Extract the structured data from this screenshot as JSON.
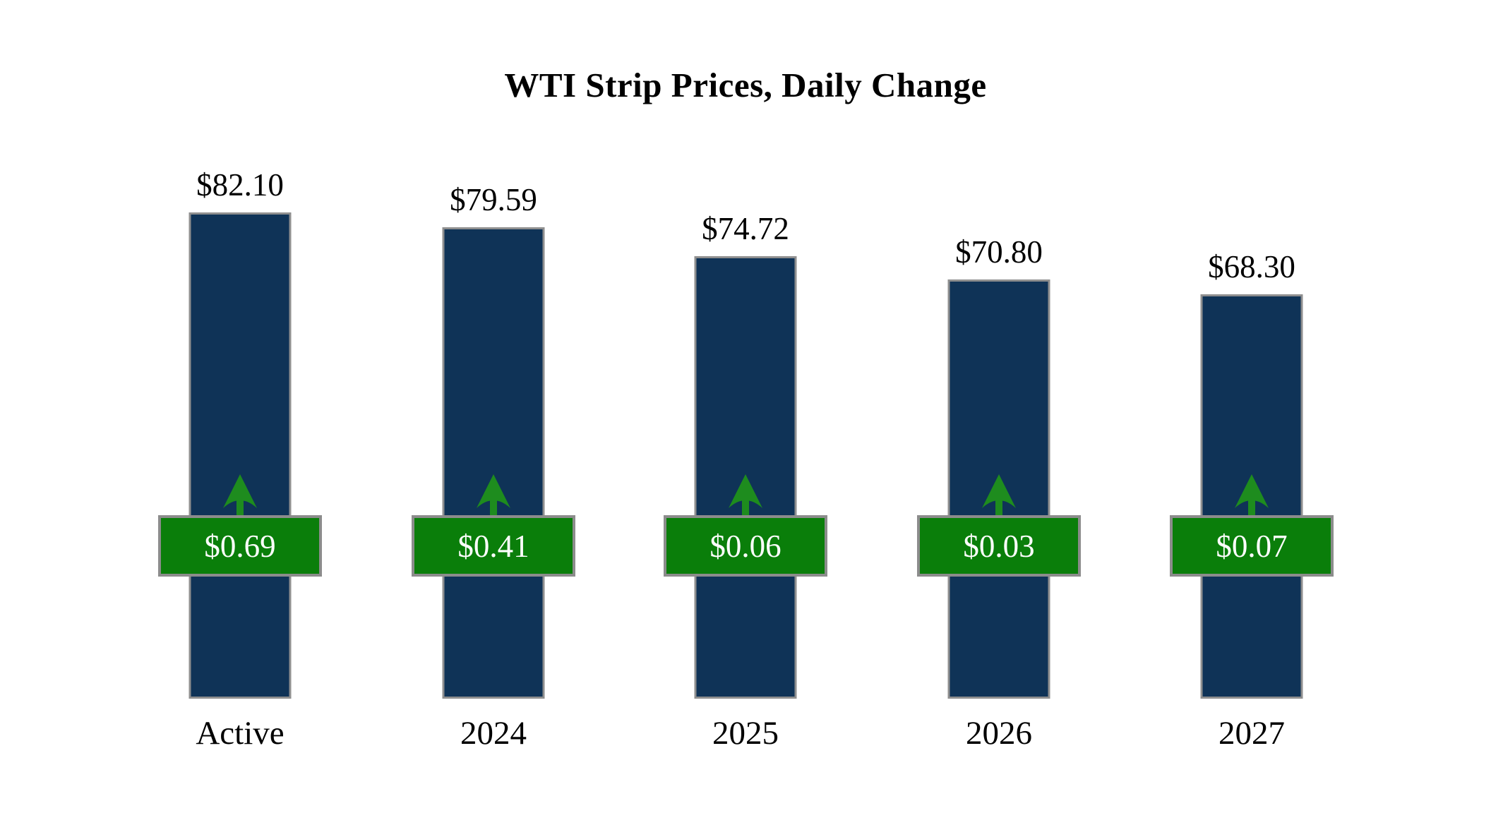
{
  "title": "WTI Strip Prices, Daily Change",
  "chart_data": {
    "type": "bar",
    "title": "WTI Strip Prices, Daily Change",
    "categories": [
      "Active",
      "2024",
      "2025",
      "2026",
      "2027"
    ],
    "series": [
      {
        "name": "WTI strip price ($/bbl)",
        "values": [
          82.1,
          79.59,
          74.72,
          70.8,
          68.3
        ]
      },
      {
        "name": "Daily change ($)",
        "values": [
          0.69,
          0.41,
          0.06,
          0.03,
          0.07
        ]
      }
    ],
    "price_labels": [
      "$82.10",
      "$79.59",
      "$74.72",
      "$70.80",
      "$68.30"
    ],
    "change_labels": [
      "$0.69",
      "$0.41",
      "$0.06",
      "$0.03",
      "$0.07"
    ],
    "change_direction": [
      "up",
      "up",
      "up",
      "up",
      "up"
    ],
    "ylim": [
      0,
      82.1
    ],
    "grid": false,
    "legend": false,
    "colors": {
      "bar_fill": "#0F3357",
      "bar_border": "#8F8F8F",
      "badge_fill": "#0A7E0A",
      "badge_border": "#8C8C8C",
      "badge_text": "#FFFFFF",
      "arrow": "#1E8C1E",
      "title_text": "#000000"
    }
  }
}
